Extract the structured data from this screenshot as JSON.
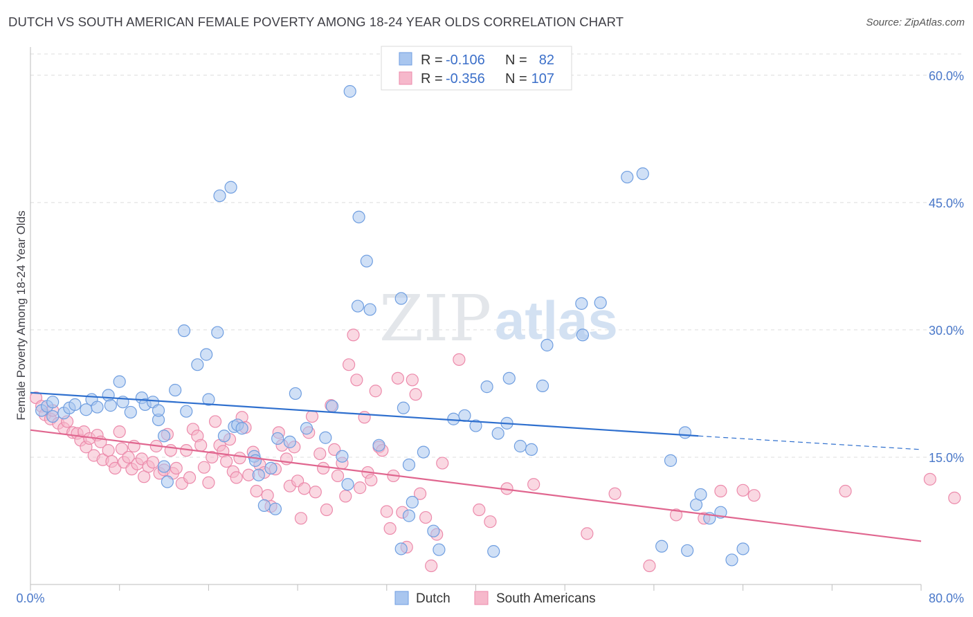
{
  "header": {
    "title": "DUTCH VS SOUTH AMERICAN FEMALE POVERTY AMONG 18-24 YEAR OLDS CORRELATION CHART",
    "source": "Source: ZipAtlas.com"
  },
  "watermark": {
    "part1": "ZIP",
    "part2": "atlas"
  },
  "legend": {
    "rows": [
      {
        "r_label": "R =",
        "r_value": "-0.106",
        "n_label": "N =",
        "n_value": "82"
      },
      {
        "r_label": "R =",
        "r_value": "-0.356",
        "n_label": "N =",
        "n_value": "107"
      }
    ]
  },
  "colors": {
    "dutch_fill": "#a9c6ef",
    "dutch_stroke": "#6f9ee0",
    "dutch_line": "#2e6fce",
    "sa_fill": "#f6b8cb",
    "sa_stroke": "#ec8aab",
    "sa_line": "#e0668f",
    "grid": "#dcdcdc",
    "tick": "#4a78c9"
  },
  "chart_data": {
    "type": "scatter",
    "title": "DUTCH VS SOUTH AMERICAN FEMALE POVERTY AMONG 18-24 YEAR OLDS CORRELATION CHART",
    "xlabel": "",
    "ylabel": "Female Poverty Among 18-24 Year Olds",
    "xlim": [
      0,
      80
    ],
    "ylim": [
      0,
      63
    ],
    "x_tick_labels": [
      "0.0%",
      "80.0%"
    ],
    "y_ticks": [
      15,
      30,
      45,
      60
    ],
    "y_tick_labels": [
      "15.0%",
      "30.0%",
      "45.0%",
      "60.0%"
    ],
    "grid": true,
    "legend_position": "top-center",
    "series": [
      {
        "name": "Dutch",
        "trend": {
          "x0": 0,
          "y0": 22.6,
          "x1": 60,
          "y1": 17.5,
          "dash_to_x": 80,
          "dash_to_y": 15.9
        },
        "points": [
          [
            1,
            20.5
          ],
          [
            1.5,
            21
          ],
          [
            2,
            19.8
          ],
          [
            2,
            21.5
          ],
          [
            3,
            20.2
          ],
          [
            3.5,
            20.8
          ],
          [
            4,
            21.2
          ],
          [
            5,
            20.6
          ],
          [
            5.5,
            21.8
          ],
          [
            6,
            20.9
          ],
          [
            7,
            22.3
          ],
          [
            7.2,
            21.1
          ],
          [
            8,
            23.9
          ],
          [
            8.3,
            21.5
          ],
          [
            9,
            20.3
          ],
          [
            10,
            22
          ],
          [
            10.3,
            21.2
          ],
          [
            11,
            21.5
          ],
          [
            11.5,
            19.4
          ],
          [
            11.5,
            20.5
          ],
          [
            12,
            17.5
          ],
          [
            12,
            13.9
          ],
          [
            12.3,
            12.1
          ],
          [
            13,
            22.9
          ],
          [
            13.8,
            29.9
          ],
          [
            14,
            20.4
          ],
          [
            15,
            25.9
          ],
          [
            15.8,
            27.1
          ],
          [
            16,
            21.8
          ],
          [
            16.8,
            29.7
          ],
          [
            17.4,
            17.5
          ],
          [
            18.3,
            18.6
          ],
          [
            18.6,
            18.8
          ],
          [
            19,
            18.4
          ],
          [
            20.1,
            15.1
          ],
          [
            20.2,
            14.6
          ],
          [
            20.5,
            12.9
          ],
          [
            21,
            9.3
          ],
          [
            21.6,
            13.7
          ],
          [
            22.2,
            17.2
          ],
          [
            22,
            8.9
          ],
          [
            23.3,
            16.8
          ],
          [
            23.8,
            22.5
          ],
          [
            24.8,
            18.4
          ],
          [
            26.5,
            17.3
          ],
          [
            27.1,
            21
          ],
          [
            28,
            15.1
          ],
          [
            28.5,
            11.8
          ],
          [
            29.4,
            32.8
          ],
          [
            31.3,
            16.4
          ],
          [
            29.5,
            43.3
          ],
          [
            30.2,
            38.1
          ],
          [
            30.5,
            32.4
          ],
          [
            33.3,
            33.7
          ],
          [
            33.5,
            20.8
          ],
          [
            34,
            14.1
          ],
          [
            34.3,
            9.7
          ],
          [
            35.3,
            15.6
          ],
          [
            36.2,
            6.3
          ],
          [
            36.7,
            4.1
          ],
          [
            38,
            19.5
          ],
          [
            39,
            19.9
          ],
          [
            40,
            18.7
          ],
          [
            41,
            23.3
          ],
          [
            42,
            17.8
          ],
          [
            42.8,
            19
          ],
          [
            43,
            24.3
          ],
          [
            44,
            16.3
          ],
          [
            45,
            15.9
          ],
          [
            46,
            23.4
          ],
          [
            46.4,
            28.2
          ],
          [
            49.5,
            33.1
          ],
          [
            51.2,
            33.2
          ],
          [
            49.6,
            29.4
          ],
          [
            53.6,
            48
          ],
          [
            55,
            48.4
          ],
          [
            56.7,
            4.5
          ],
          [
            57.5,
            14.6
          ],
          [
            58.8,
            17.9
          ],
          [
            59.8,
            9.4
          ],
          [
            60.2,
            10.6
          ],
          [
            61,
            7.8
          ],
          [
            62,
            8.5
          ],
          [
            63,
            2.9
          ],
          [
            64,
            4.2
          ],
          [
            59,
            4
          ],
          [
            28.7,
            58.1
          ],
          [
            33.3,
            4.2
          ],
          [
            34,
            8.1
          ],
          [
            41.6,
            3.9
          ],
          [
            17,
            45.8
          ],
          [
            18,
            46.8
          ]
        ]
      },
      {
        "name": "South Americans",
        "trend": {
          "x0": 0,
          "y0": 18.2,
          "x1": 80,
          "y1": 5.1
        },
        "points": [
          [
            0.5,
            22
          ],
          [
            1,
            21
          ],
          [
            1.3,
            20
          ],
          [
            1.8,
            19.5
          ],
          [
            2,
            20.5
          ],
          [
            2.5,
            19
          ],
          [
            3,
            18.4
          ],
          [
            3.3,
            19.2
          ],
          [
            3.8,
            17.9
          ],
          [
            4.2,
            17.8
          ],
          [
            4.5,
            17
          ],
          [
            4.8,
            18
          ],
          [
            5,
            16.2
          ],
          [
            5.3,
            17.2
          ],
          [
            5.7,
            15.2
          ],
          [
            6,
            17.6
          ],
          [
            6.3,
            16.8
          ],
          [
            6.5,
            14.7
          ],
          [
            7,
            15.8
          ],
          [
            7.3,
            14.5
          ],
          [
            7.6,
            13.7
          ],
          [
            8,
            18
          ],
          [
            8.2,
            16
          ],
          [
            8.4,
            14.4
          ],
          [
            8.8,
            15
          ],
          [
            9.1,
            13.6
          ],
          [
            9.3,
            16.3
          ],
          [
            9.6,
            14.2
          ],
          [
            10,
            14.8
          ],
          [
            10.2,
            12.7
          ],
          [
            10.6,
            13.9
          ],
          [
            11,
            14.4
          ],
          [
            11.3,
            16.3
          ],
          [
            11.6,
            13.1
          ],
          [
            12,
            13.5
          ],
          [
            12.3,
            17.7
          ],
          [
            12.6,
            15.8
          ],
          [
            12.8,
            13.1
          ],
          [
            13.1,
            13.7
          ],
          [
            13.6,
            11.9
          ],
          [
            14,
            15.8
          ],
          [
            14.3,
            12.6
          ],
          [
            14.6,
            18.3
          ],
          [
            15,
            17.5
          ],
          [
            15.3,
            16.4
          ],
          [
            15.6,
            13.8
          ],
          [
            16,
            12
          ],
          [
            16.3,
            15
          ],
          [
            16.6,
            19.2
          ],
          [
            17,
            16.4
          ],
          [
            17.3,
            15.7
          ],
          [
            17.6,
            14.5
          ],
          [
            17.9,
            17.1
          ],
          [
            18.2,
            13.3
          ],
          [
            18.5,
            12.6
          ],
          [
            18.8,
            14.9
          ],
          [
            19,
            19.7
          ],
          [
            19.3,
            18.5
          ],
          [
            19.6,
            12.9
          ],
          [
            20,
            15.6
          ],
          [
            20.3,
            11
          ],
          [
            20.6,
            14.1
          ],
          [
            21,
            13.2
          ],
          [
            21.3,
            10.5
          ],
          [
            21.6,
            9.2
          ],
          [
            22,
            13.6
          ],
          [
            22.3,
            17.9
          ],
          [
            22.6,
            16.4
          ],
          [
            23,
            14.8
          ],
          [
            23.3,
            11.6
          ],
          [
            23.7,
            16.2
          ],
          [
            24,
            12.2
          ],
          [
            24.3,
            7.8
          ],
          [
            24.6,
            11.3
          ],
          [
            25,
            17.9
          ],
          [
            25.3,
            19.8
          ],
          [
            25.6,
            10.9
          ],
          [
            26,
            15.4
          ],
          [
            26.3,
            13.7
          ],
          [
            26.6,
            8.8
          ],
          [
            27,
            21.1
          ],
          [
            27.3,
            15.9
          ],
          [
            27.6,
            12.8
          ],
          [
            28,
            14.3
          ],
          [
            28.3,
            10.4
          ],
          [
            28.6,
            25.9
          ],
          [
            29,
            29.4
          ],
          [
            29.3,
            24.1
          ],
          [
            29.6,
            11.4
          ],
          [
            30,
            19.7
          ],
          [
            30.3,
            13.2
          ],
          [
            30.6,
            12.3
          ],
          [
            31,
            22.8
          ],
          [
            31.3,
            16.2
          ],
          [
            31.6,
            15.8
          ],
          [
            32,
            8.6
          ],
          [
            32.3,
            6.6
          ],
          [
            32.6,
            12.8
          ],
          [
            33,
            24.3
          ],
          [
            33.4,
            8.5
          ],
          [
            33.8,
            4.4
          ],
          [
            34.3,
            24.1
          ],
          [
            34.6,
            22.4
          ],
          [
            35,
            10.7
          ],
          [
            35.5,
            7.9
          ],
          [
            36,
            2.2
          ],
          [
            36.5,
            5.9
          ],
          [
            37,
            14.3
          ],
          [
            38.5,
            26.5
          ],
          [
            40.3,
            8.8
          ],
          [
            41.3,
            7.4
          ],
          [
            42.8,
            11.3
          ],
          [
            45.2,
            11.8
          ],
          [
            50,
            6
          ],
          [
            52.5,
            10.7
          ],
          [
            55.6,
            2.2
          ],
          [
            58,
            8.2
          ],
          [
            60.5,
            7.8
          ],
          [
            62,
            11
          ],
          [
            64,
            11.1
          ],
          [
            65,
            10.5
          ],
          [
            73.2,
            11
          ],
          [
            80.8,
            12.4
          ],
          [
            83,
            10.2
          ]
        ]
      }
    ]
  },
  "bottom_legend": {
    "items": [
      "Dutch",
      "South Americans"
    ]
  }
}
